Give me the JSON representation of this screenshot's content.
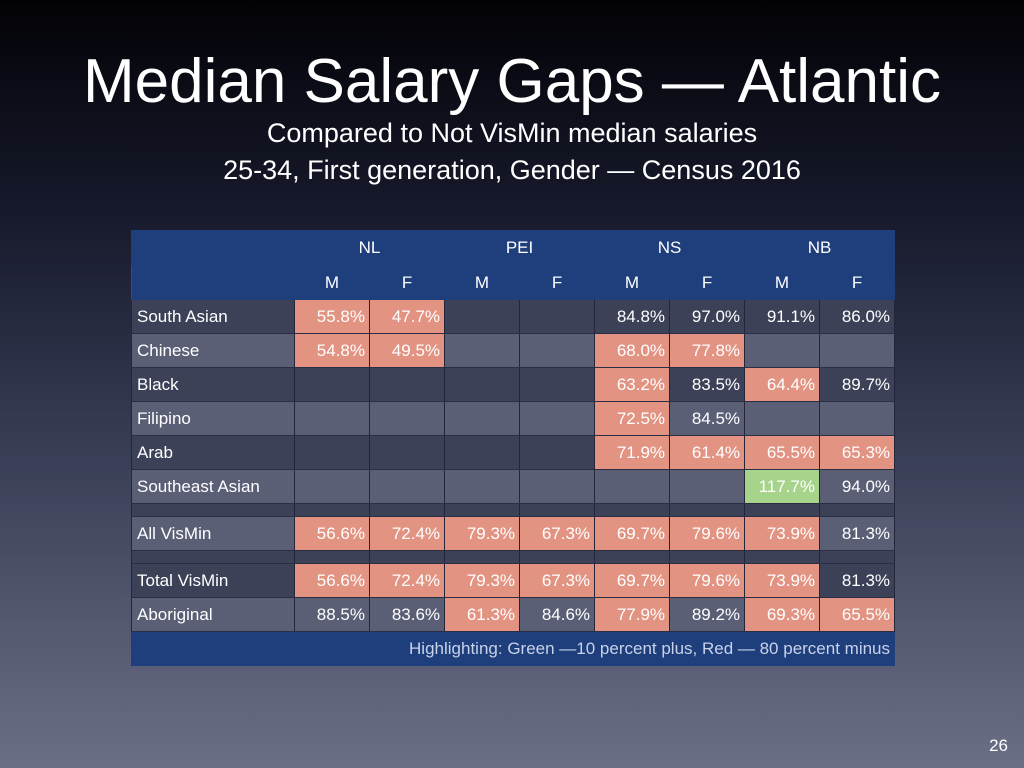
{
  "slide": {
    "title": "Median Salary Gaps — Atlantic",
    "subtitle_line1": "Compared to Not VisMin median salaries",
    "subtitle_line2": "25-34, First generation, Gender — Census 2016",
    "page_number": "26"
  },
  "table": {
    "regions": [
      "NL",
      "PEI",
      "NS",
      "NB"
    ],
    "genders": [
      "M",
      "F",
      "M",
      "F",
      "M",
      "F",
      "M",
      "F"
    ],
    "rows": [
      {
        "label": "South Asian",
        "values": [
          "55.8%",
          "47.7%",
          "",
          "",
          "84.8%",
          "97.0%",
          "91.1%",
          "86.0%"
        ]
      },
      {
        "label": "Chinese",
        "values": [
          "54.8%",
          "49.5%",
          "",
          "",
          "68.0%",
          "77.8%",
          "",
          ""
        ]
      },
      {
        "label": "Black",
        "values": [
          "",
          "",
          "",
          "",
          "63.2%",
          "83.5%",
          "64.4%",
          "89.7%"
        ]
      },
      {
        "label": "Filipino",
        "values": [
          "",
          "",
          "",
          "",
          "72.5%",
          "84.5%",
          "",
          ""
        ]
      },
      {
        "label": "Arab",
        "values": [
          "",
          "",
          "",
          "",
          "71.9%",
          "61.4%",
          "65.5%",
          "65.3%"
        ]
      },
      {
        "label": "Southeast Asian",
        "values": [
          "",
          "",
          "",
          "",
          "",
          "",
          "117.7%",
          "94.0%"
        ]
      },
      {
        "label": "All VisMin",
        "values": [
          "56.6%",
          "72.4%",
          "79.3%",
          "67.3%",
          "69.7%",
          "79.6%",
          "73.9%",
          "81.3%"
        ]
      },
      {
        "label": "Total VisMin",
        "values": [
          "56.6%",
          "72.4%",
          "79.3%",
          "67.3%",
          "69.7%",
          "79.6%",
          "73.9%",
          "81.3%"
        ]
      },
      {
        "label": "Aboriginal",
        "values": [
          "88.5%",
          "83.6%",
          "61.3%",
          "84.6%",
          "77.9%",
          "89.2%",
          "69.3%",
          "65.5%"
        ]
      }
    ],
    "footer_note": "Highlighting: Green —10 percent plus, Red — 80 percent minus"
  },
  "colors": {
    "header_blue": "#1f3e7c",
    "highlight_red": "#e39382",
    "highlight_green": "#a6d48b",
    "row_dark": "#3d4157",
    "row_light": "#5b5f76"
  }
}
